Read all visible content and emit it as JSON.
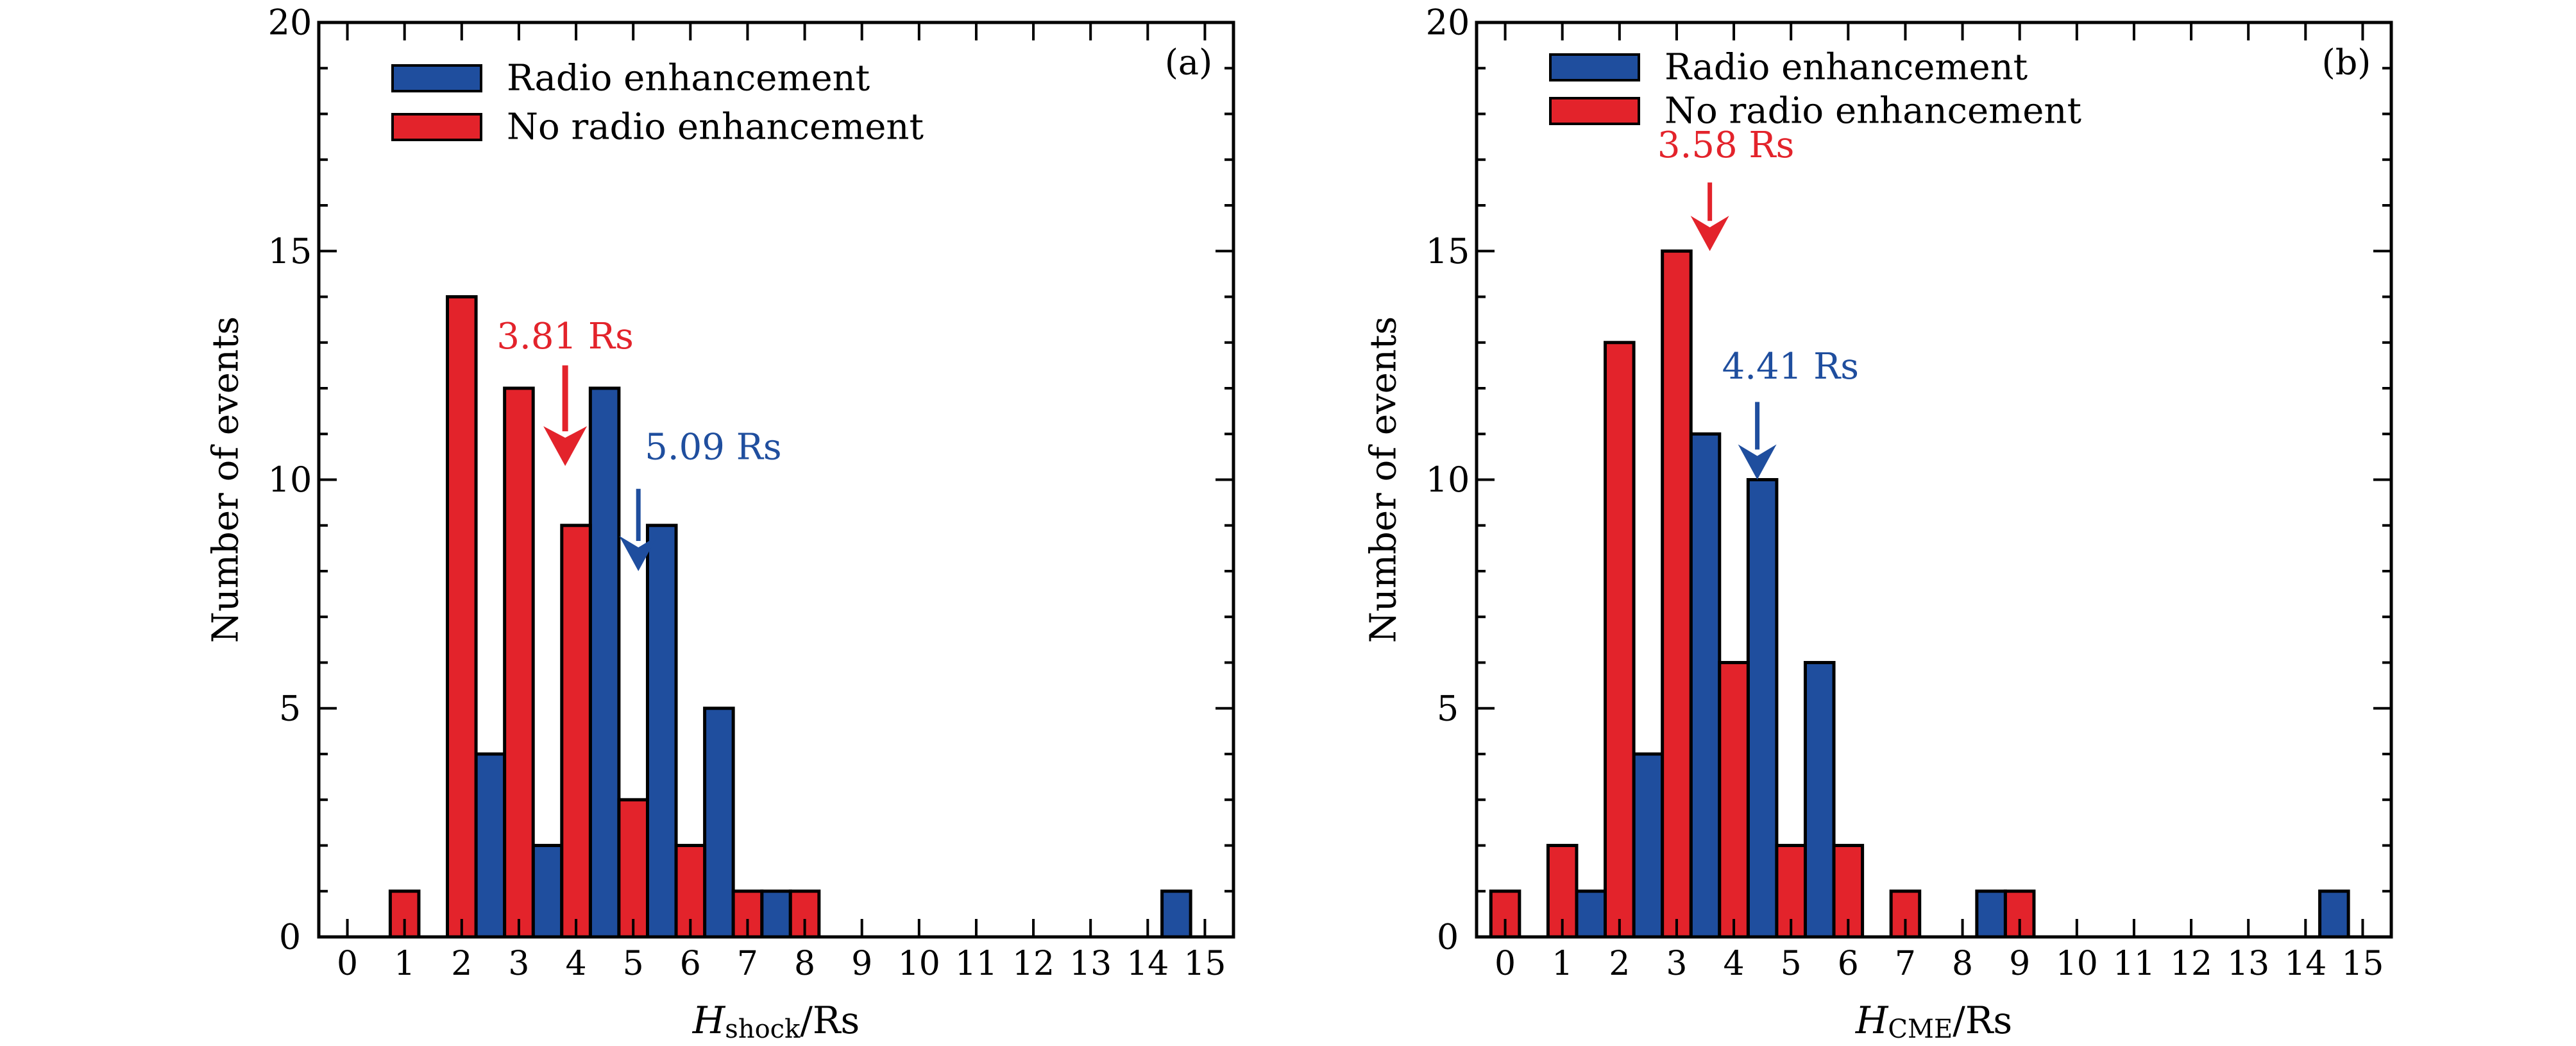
{
  "colors": {
    "radio": "#1f4e9e",
    "no_radio": "#e3232b",
    "axis": "#000000"
  },
  "chart_data": [
    {
      "type": "bar",
      "panel_label": "(a)",
      "xlabel_main": "H",
      "xlabel_sub": "shock",
      "xlabel_tail": "/Rs",
      "ylabel": "Number of events",
      "xlim": [
        -0.5,
        15.5
      ],
      "ylim": [
        0,
        20
      ],
      "x_ticks": [
        "0",
        "1",
        "2",
        "3",
        "4",
        "5",
        "6",
        "7",
        "8",
        "9",
        "10",
        "11",
        "12",
        "13",
        "14",
        "15"
      ],
      "y_ticks": [
        0,
        5,
        10,
        15,
        20
      ],
      "grid": false,
      "legend_position": "top-left",
      "series": [
        {
          "name": "Radio enhancement",
          "color": "#1f4e9e",
          "x": [
            2.5,
            3.5,
            4.5,
            5.5,
            6.5,
            7.5,
            14.5
          ],
          "values": [
            4,
            2,
            12,
            9,
            5,
            1,
            1
          ]
        },
        {
          "name": "No radio enhancement",
          "color": "#e3232b",
          "x": [
            1,
            2,
            3,
            4,
            5,
            6,
            7,
            8
          ],
          "values": [
            1,
            14,
            12,
            9,
            3,
            2,
            1,
            1
          ]
        }
      ],
      "annotations": [
        {
          "text": "3.81 Rs",
          "color": "#e3232b",
          "x": 3.81,
          "y_tip": 10.3,
          "y_tail": 12.5,
          "arrow_width": 0.85
        },
        {
          "text": "5.09 Rs",
          "color": "#1f4e9e",
          "x": 5.09,
          "y_tip": 8.0,
          "y_tail": 9.8,
          "arrow_width": 0.6
        }
      ]
    },
    {
      "type": "bar",
      "panel_label": "(b)",
      "xlabel_main": "H",
      "xlabel_sub": "CME",
      "xlabel_tail": "/Rs",
      "ylabel": "Number of events",
      "xlim": [
        -0.5,
        15.5
      ],
      "ylim": [
        0,
        20
      ],
      "x_ticks": [
        "0",
        "1",
        "2",
        "3",
        "4",
        "5",
        "6",
        "7",
        "8",
        "9",
        "10",
        "11",
        "12",
        "13",
        "14",
        "15"
      ],
      "y_ticks": [
        0,
        5,
        10,
        15,
        20
      ],
      "grid": false,
      "legend_position": "top-left",
      "series": [
        {
          "name": "Radio enhancement",
          "color": "#1f4e9e",
          "x": [
            1.5,
            2.5,
            3.5,
            4.5,
            5.5,
            8.5,
            14.5
          ],
          "values": [
            1,
            4,
            11,
            10,
            6,
            1,
            1
          ]
        },
        {
          "name": "No radio enhancement",
          "color": "#e3232b",
          "x": [
            0,
            1,
            2,
            3,
            4,
            5,
            6,
            7,
            9
          ],
          "values": [
            1,
            2,
            13,
            15,
            6,
            2,
            2,
            1,
            1
          ]
        }
      ],
      "annotations": [
        {
          "text": "3.58 Rs",
          "color": "#e3232b",
          "x": 3.58,
          "y_tip": 15.0,
          "y_tail": 16.5,
          "arrow_width": 0.65
        },
        {
          "text": "4.41 Rs",
          "color": "#1f4e9e",
          "x": 4.41,
          "y_tip": 10.0,
          "y_tail": 11.7,
          "arrow_width": 0.65
        }
      ]
    }
  ]
}
